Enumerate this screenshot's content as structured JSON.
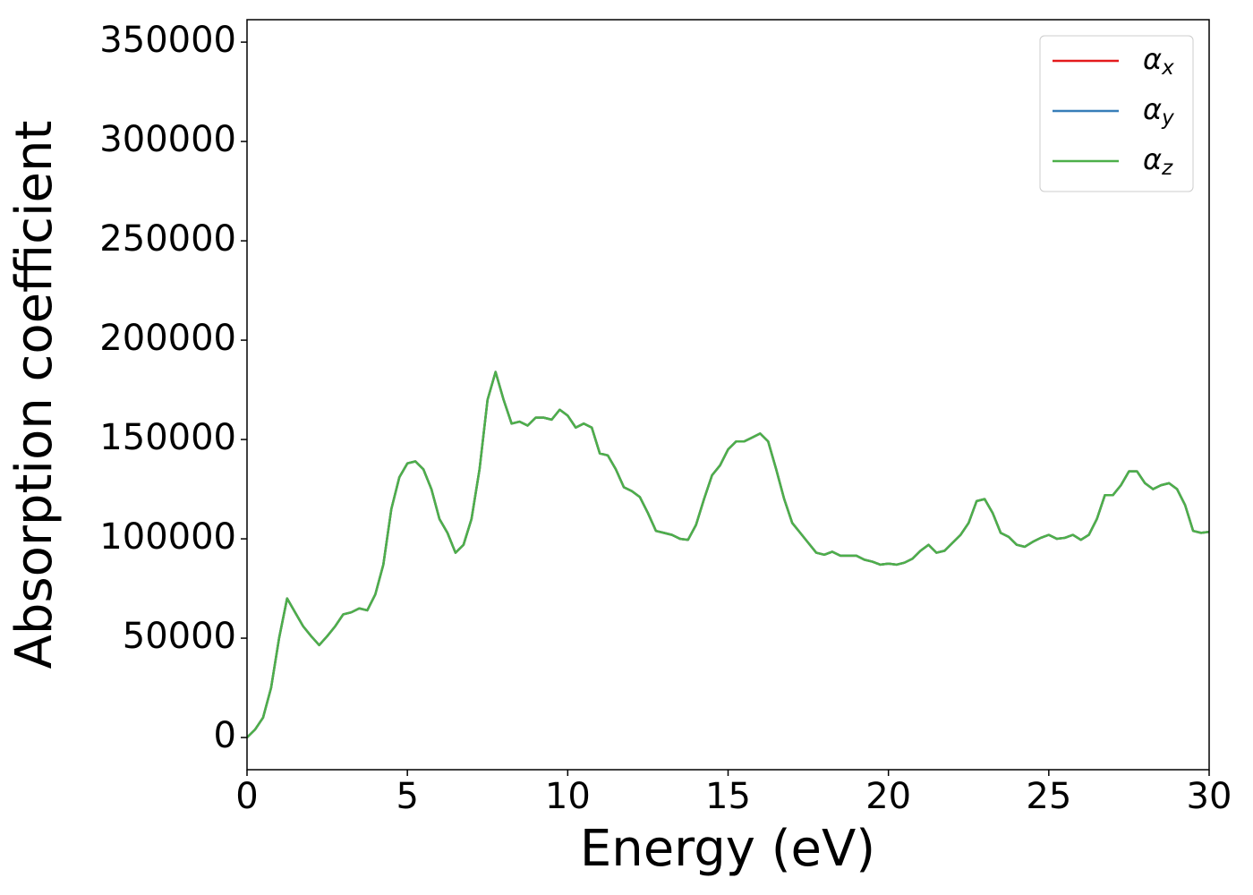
{
  "chart_data": {
    "type": "line",
    "x_label": "Energy (eV)",
    "y_label": "Absorption coefficient",
    "x": [
      0,
      0.25,
      0.5,
      0.75,
      1,
      1.25,
      1.5,
      1.75,
      2,
      2.25,
      2.5,
      2.75,
      3,
      3.25,
      3.5,
      3.75,
      4,
      4.25,
      4.5,
      4.75,
      5,
      5.25,
      5.5,
      5.75,
      6,
      6.25,
      6.5,
      6.75,
      7,
      7.25,
      7.5,
      7.75,
      8,
      8.25,
      8.5,
      8.75,
      9,
      9.25,
      9.5,
      9.75,
      10,
      10.25,
      10.5,
      10.75,
      11,
      11.25,
      11.5,
      11.75,
      12,
      12.25,
      12.5,
      12.75,
      13,
      13.25,
      13.5,
      13.75,
      14,
      14.25,
      14.5,
      14.75,
      15,
      15.25,
      15.5,
      15.75,
      16,
      16.25,
      16.5,
      16.75,
      17,
      17.25,
      17.5,
      17.75,
      18,
      18.25,
      18.5,
      18.75,
      19,
      19.25,
      19.5,
      19.75,
      20,
      20.25,
      20.5,
      20.75,
      21,
      21.25,
      21.5,
      21.75,
      22,
      22.25,
      22.5,
      22.75,
      23,
      23.25,
      23.5,
      23.75,
      24,
      24.25,
      24.5,
      24.75,
      25,
      25.25,
      25.5,
      25.75,
      26,
      26.25,
      26.5,
      26.75,
      27,
      27.25,
      27.5,
      27.75,
      28,
      28.25,
      28.5,
      28.75,
      29,
      29.25,
      29.5,
      29.75,
      30
    ],
    "series": [
      {
        "name": "αx",
        "color": "#e41a1c",
        "values": [
          0,
          4000,
          10000,
          25000,
          50000,
          70000,
          63000,
          56000,
          51000,
          46500,
          51000,
          56000,
          62000,
          63000,
          65000,
          64000,
          72000,
          87000,
          115000,
          131000,
          138000,
          139000,
          135000,
          125000,
          110000,
          103000,
          93000,
          97000,
          110000,
          135000,
          170000,
          184000,
          170000,
          158000,
          159000,
          157000,
          161000,
          161000,
          160000,
          165000,
          162000,
          156000,
          158000,
          156000,
          143000,
          142000,
          135000,
          126000,
          124000,
          121000,
          113000,
          104000,
          103000,
          102000,
          100000,
          99500,
          107000,
          120000,
          132000,
          137000,
          145000,
          149000,
          149000,
          151000,
          153000,
          149000,
          135000,
          120000,
          108000,
          103000,
          98000,
          93000,
          92000,
          93500,
          91500,
          91500,
          91500,
          89500,
          88500,
          87000,
          87500,
          87000,
          88000,
          90000,
          94000,
          97000,
          93000,
          94000,
          98000,
          102000,
          108000,
          119000,
          120000,
          113000,
          103000,
          101000,
          97000,
          96000,
          98500,
          100500,
          102000,
          100000,
          100500,
          102000,
          99500,
          102000,
          110000,
          122000,
          122000,
          127000,
          134000,
          134000,
          128000,
          125000,
          127000,
          128000,
          125000,
          117000,
          104000,
          103000,
          103500
        ]
      },
      {
        "name": "αy",
        "color": "#377eb8",
        "values": [
          0,
          4000,
          10000,
          25000,
          50000,
          70000,
          63000,
          56000,
          51000,
          46500,
          51000,
          56000,
          62000,
          63000,
          65000,
          64000,
          72000,
          87000,
          115000,
          131000,
          138000,
          139000,
          135000,
          125000,
          110000,
          103000,
          93000,
          97000,
          110000,
          135000,
          170000,
          184000,
          170000,
          158000,
          159000,
          157000,
          161000,
          161000,
          160000,
          165000,
          162000,
          156000,
          158000,
          156000,
          143000,
          142000,
          135000,
          126000,
          124000,
          121000,
          113000,
          104000,
          103000,
          102000,
          100000,
          99500,
          107000,
          120000,
          132000,
          137000,
          145000,
          149000,
          149000,
          151000,
          153000,
          149000,
          135000,
          120000,
          108000,
          103000,
          98000,
          93000,
          92000,
          93500,
          91500,
          91500,
          91500,
          89500,
          88500,
          87000,
          87500,
          87000,
          88000,
          90000,
          94000,
          97000,
          93000,
          94000,
          98000,
          102000,
          108000,
          119000,
          120000,
          113000,
          103000,
          101000,
          97000,
          96000,
          98500,
          100500,
          102000,
          100000,
          100500,
          102000,
          99500,
          102000,
          110000,
          122000,
          122000,
          127000,
          134000,
          134000,
          128000,
          125000,
          127000,
          128000,
          125000,
          117000,
          104000,
          103000,
          103500
        ]
      },
      {
        "name": "αz",
        "color": "#4daf4a",
        "values": [
          0,
          4000,
          10000,
          25000,
          50000,
          70000,
          63000,
          56000,
          51000,
          46500,
          51000,
          56000,
          62000,
          63000,
          65000,
          64000,
          72000,
          87000,
          115000,
          131000,
          138000,
          139000,
          135000,
          125000,
          110000,
          103000,
          93000,
          97000,
          110000,
          135000,
          170000,
          184000,
          170000,
          158000,
          159000,
          157000,
          161000,
          161000,
          160000,
          165000,
          162000,
          156000,
          158000,
          156000,
          143000,
          142000,
          135000,
          126000,
          124000,
          121000,
          113000,
          104000,
          103000,
          102000,
          100000,
          99500,
          107000,
          120000,
          132000,
          137000,
          145000,
          149000,
          149000,
          151000,
          153000,
          149000,
          135000,
          120000,
          108000,
          103000,
          98000,
          93000,
          92000,
          93500,
          91500,
          91500,
          91500,
          89500,
          88500,
          87000,
          87500,
          87000,
          88000,
          90000,
          94000,
          97000,
          93000,
          94000,
          98000,
          102000,
          108000,
          119000,
          120000,
          113000,
          103000,
          101000,
          97000,
          96000,
          98500,
          100500,
          102000,
          100000,
          100500,
          102000,
          99500,
          102000,
          110000,
          122000,
          122000,
          127000,
          134000,
          134000,
          128000,
          125000,
          127000,
          128000,
          125000,
          117000,
          104000,
          103000,
          103500
        ]
      }
    ],
    "xlim": [
      0,
      30
    ],
    "xticks": [
      0,
      5,
      10,
      15,
      20,
      25,
      30
    ],
    "ylim": [
      -16200,
      361300
    ],
    "yticks": [
      0,
      50000,
      100000,
      150000,
      200000,
      250000,
      300000,
      350000
    ],
    "legend": "upper right",
    "grid": false
  }
}
